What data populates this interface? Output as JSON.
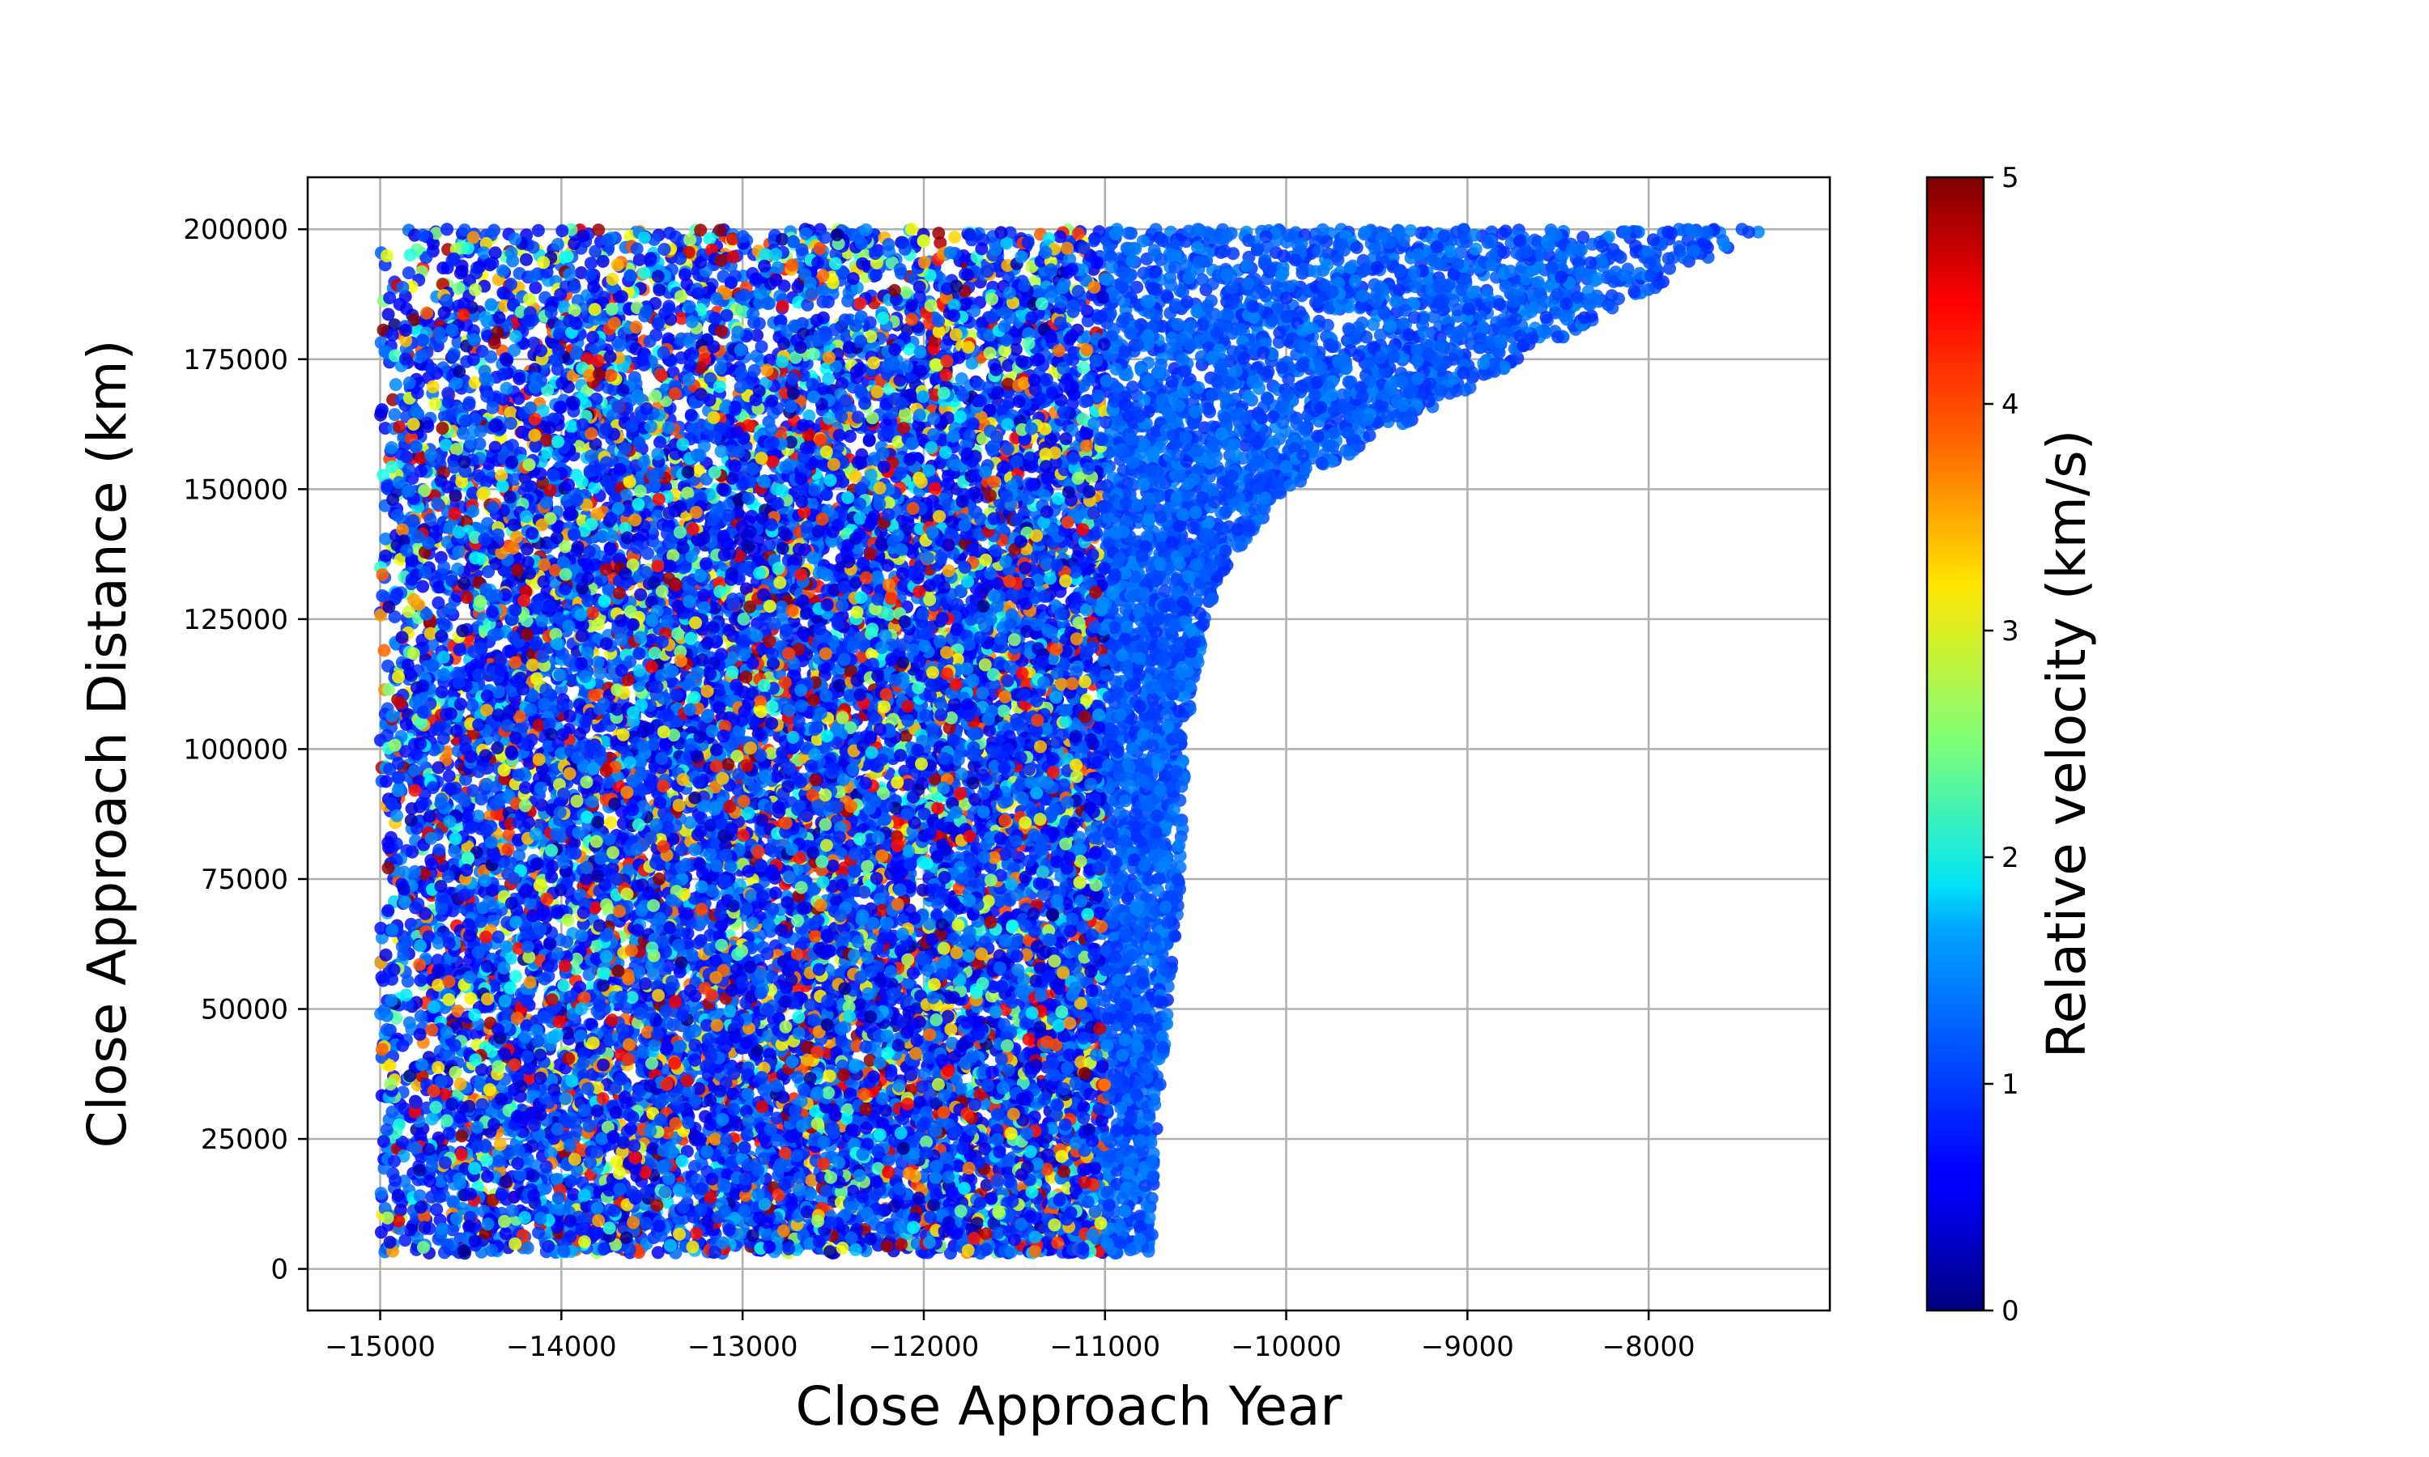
{
  "chart_data": {
    "type": "scatter",
    "title": "",
    "xlabel": "Close Approach Year",
    "ylabel": "Close Approach Distance (km)",
    "xlim": [
      -15400,
      -7000
    ],
    "ylim": [
      -8000,
      210000
    ],
    "xticks": [
      -15000,
      -14000,
      -13000,
      -12000,
      -11000,
      -10000,
      -9000,
      -8000
    ],
    "xtick_labels": [
      "−15000",
      "−14000",
      "−13000",
      "−12000",
      "−11000",
      "−10000",
      "−9000",
      "−8000"
    ],
    "yticks": [
      0,
      25000,
      50000,
      75000,
      100000,
      125000,
      150000,
      175000,
      200000
    ],
    "ytick_labels": [
      "0",
      "25000",
      "50000",
      "75000",
      "100000",
      "125000",
      "150000",
      "175000",
      "200000"
    ],
    "grid": true,
    "colorbar": {
      "label": "Relative velocity (km/s)",
      "colormap": "jet",
      "range": [
        0,
        5
      ],
      "ticks": [
        0,
        1,
        2,
        3,
        4,
        5
      ],
      "tick_labels": [
        "0",
        "1",
        "2",
        "3",
        "4",
        "5"
      ]
    },
    "distribution": {
      "x_start": -15000,
      "y_range": [
        3000,
        200000
      ],
      "mixed_velocity_until_year": -11000,
      "mixed_velocity_range": [
        0,
        5
      ],
      "outer_velocity_range": [
        0.8,
        1.3
      ],
      "right_edge": [
        [
          0,
          -10720
        ],
        [
          25000,
          -10720
        ],
        [
          50000,
          -10650
        ],
        [
          75000,
          -10580
        ],
        [
          100000,
          -10550
        ],
        [
          125000,
          -10450
        ],
        [
          135000,
          -10330
        ],
        [
          150000,
          -10000
        ],
        [
          175000,
          -8700
        ],
        [
          200000,
          -7350
        ]
      ]
    }
  }
}
